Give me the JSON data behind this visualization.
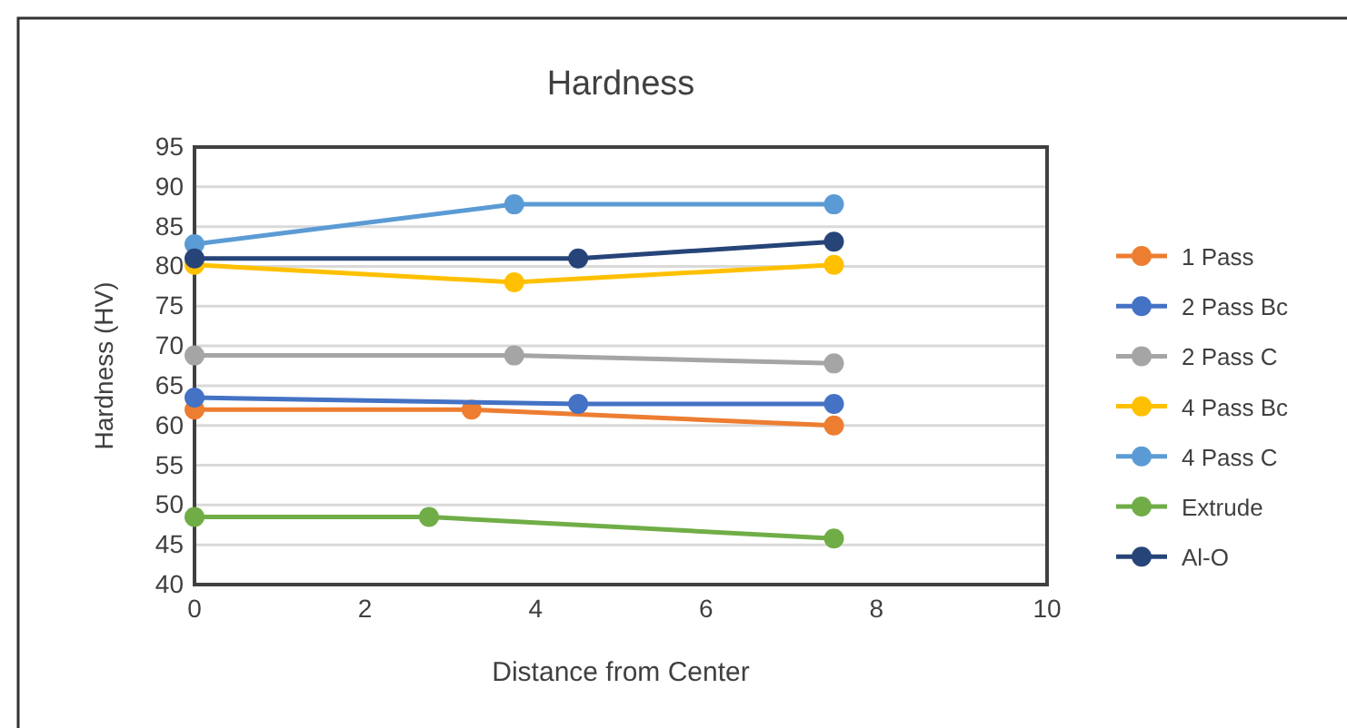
{
  "chart_data": {
    "type": "line",
    "title": "Hardness",
    "xlabel": "Distance from Center",
    "ylabel": "Hardness (HV)",
    "xlim": [
      0,
      10
    ],
    "xticks": [
      0,
      2,
      4,
      6,
      8,
      10
    ],
    "ylim": [
      40,
      95
    ],
    "yticks": [
      40,
      45,
      50,
      55,
      60,
      65,
      70,
      75,
      80,
      85,
      90,
      95
    ],
    "grid": "y",
    "legend": "right",
    "marker": "circle",
    "line_style": "solid",
    "series": [
      {
        "name": "1 Pass",
        "color": "#ed7d31",
        "x": [
          0,
          3.25,
          7.5
        ],
        "values": [
          62,
          62,
          60
        ]
      },
      {
        "name": "2 Pass Bc",
        "color": "#4472c4",
        "x": [
          0,
          4.5,
          7.5
        ],
        "values": [
          63.5,
          62.7,
          62.7
        ]
      },
      {
        "name": "2 Pass C",
        "color": "#a5a5a5",
        "x": [
          0,
          3.75,
          7.5
        ],
        "values": [
          68.8,
          68.8,
          67.8
        ]
      },
      {
        "name": "4 Pass Bc",
        "color": "#ffc000",
        "x": [
          0,
          3.75,
          7.5
        ],
        "values": [
          80.2,
          78,
          80.2
        ]
      },
      {
        "name": "4 Pass C",
        "color": "#5b9bd5",
        "x": [
          0,
          3.75,
          7.5
        ],
        "values": [
          82.8,
          87.8,
          87.8
        ]
      },
      {
        "name": "Extrude",
        "color": "#70ad47",
        "x": [
          0,
          2.75,
          7.5
        ],
        "values": [
          48.5,
          48.5,
          45.8
        ]
      },
      {
        "name": "Al-O",
        "color": "#264478",
        "x": [
          0,
          4.5,
          7.5
        ],
        "values": [
          81,
          81,
          83.1
        ]
      }
    ]
  }
}
